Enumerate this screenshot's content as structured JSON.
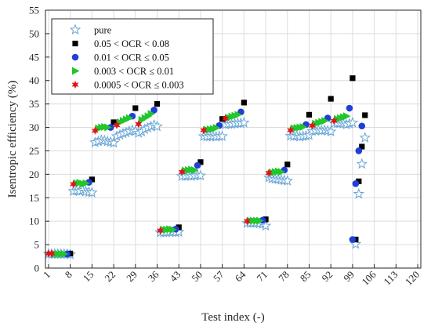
{
  "chart_data": {
    "type": "scatter",
    "title": "",
    "xlabel": "Test index (-)",
    "ylabel": "Isentropic efficiency (%)",
    "xlim": [
      0,
      121
    ],
    "ylim": [
      0,
      55
    ],
    "xticks": [
      1,
      8,
      15,
      22,
      29,
      36,
      43,
      50,
      57,
      64,
      71,
      78,
      85,
      92,
      99,
      106,
      113,
      120
    ],
    "yticks": [
      0,
      5,
      10,
      15,
      20,
      25,
      30,
      35,
      40,
      45,
      50,
      55
    ],
    "grid": true,
    "legend_position": "top-left",
    "series": [
      {
        "name": "pure",
        "marker": "star-outline",
        "color": "#6aa6d6",
        "points": [
          [
            1,
            3.0
          ],
          [
            2,
            3.0
          ],
          [
            3,
            3.0
          ],
          [
            4,
            3.0
          ],
          [
            5,
            3.0
          ],
          [
            6,
            3.0
          ],
          [
            7,
            3.0
          ],
          [
            8,
            2.9
          ],
          [
            9,
            16.4
          ],
          [
            10,
            16.5
          ],
          [
            11,
            16.4
          ],
          [
            12,
            16.6
          ],
          [
            13,
            16.3
          ],
          [
            14,
            16.2
          ],
          [
            15,
            16.1
          ],
          [
            16,
            26.8
          ],
          [
            17,
            27.0
          ],
          [
            18,
            27.3
          ],
          [
            19,
            27.2
          ],
          [
            20,
            27.0
          ],
          [
            21,
            26.9
          ],
          [
            22,
            26.7
          ],
          [
            23,
            28.1
          ],
          [
            24,
            28.4
          ],
          [
            25,
            28.7
          ],
          [
            26,
            28.9
          ],
          [
            27,
            29.2
          ],
          [
            28,
            29.4
          ],
          [
            29,
            29.2
          ],
          [
            30,
            28.8
          ],
          [
            31,
            29.1
          ],
          [
            32,
            29.6
          ],
          [
            33,
            29.9
          ],
          [
            34,
            30.2
          ],
          [
            35,
            30.5
          ],
          [
            36,
            30.2
          ],
          [
            37,
            7.6
          ],
          [
            38,
            7.6
          ],
          [
            39,
            7.6
          ],
          [
            40,
            7.7
          ],
          [
            41,
            7.7
          ],
          [
            42,
            7.6
          ],
          [
            43,
            7.7
          ],
          [
            44,
            19.6
          ],
          [
            45,
            19.6
          ],
          [
            46,
            19.7
          ],
          [
            47,
            19.6
          ],
          [
            48,
            19.7
          ],
          [
            49,
            19.8
          ],
          [
            50,
            19.7
          ],
          [
            51,
            28.1
          ],
          [
            52,
            28.0
          ],
          [
            53,
            28.1
          ],
          [
            54,
            28.1
          ],
          [
            55,
            28.0
          ],
          [
            56,
            28.1
          ],
          [
            57,
            28.1
          ],
          [
            58,
            30.6
          ],
          [
            59,
            30.7
          ],
          [
            60,
            30.7
          ],
          [
            61,
            30.8
          ],
          [
            62,
            30.9
          ],
          [
            63,
            30.9
          ],
          [
            64,
            31.0
          ],
          [
            65,
            9.6
          ],
          [
            66,
            9.6
          ],
          [
            67,
            9.6
          ],
          [
            68,
            9.6
          ],
          [
            69,
            9.5
          ],
          [
            70,
            9.4
          ],
          [
            71,
            9.0
          ],
          [
            72,
            19.3
          ],
          [
            73,
            19.1
          ],
          [
            74,
            19.0
          ],
          [
            75,
            18.9
          ],
          [
            76,
            18.8
          ],
          [
            77,
            18.7
          ],
          [
            78,
            18.6
          ],
          [
            79,
            28.2
          ],
          [
            80,
            28.1
          ],
          [
            81,
            28.2
          ],
          [
            82,
            28.0
          ],
          [
            83,
            28.1
          ],
          [
            84,
            28.2
          ],
          [
            85,
            28.3
          ],
          [
            86,
            29.2
          ],
          [
            87,
            29.3
          ],
          [
            88,
            29.4
          ],
          [
            89,
            29.3
          ],
          [
            90,
            29.4
          ],
          [
            91,
            29.3
          ],
          [
            92,
            29.1
          ],
          [
            93,
            30.9
          ],
          [
            94,
            30.9
          ],
          [
            95,
            30.9
          ],
          [
            96,
            30.8
          ],
          [
            97,
            30.6
          ],
          [
            98,
            30.8
          ],
          [
            99,
            31.0
          ],
          [
            100,
            5.1
          ],
          [
            101,
            15.8
          ],
          [
            102,
            22.2
          ],
          [
            103,
            27.8
          ]
        ]
      },
      {
        "name": "0.05 < OCR < 0.08",
        "marker": "square",
        "color": "#000000",
        "points": [
          [
            8,
            3.1
          ],
          [
            15,
            18.9
          ],
          [
            22,
            31.1
          ],
          [
            29,
            34.1
          ],
          [
            36,
            35.0
          ],
          [
            43,
            8.7
          ],
          [
            50,
            22.6
          ],
          [
            57,
            31.8
          ],
          [
            64,
            35.3
          ],
          [
            71,
            10.4
          ],
          [
            78,
            22.1
          ],
          [
            85,
            32.7
          ],
          [
            92,
            36.1
          ],
          [
            99,
            40.5
          ],
          [
            100,
            6.1
          ],
          [
            101,
            18.5
          ],
          [
            102,
            25.9
          ],
          [
            103,
            32.6
          ]
        ]
      },
      {
        "name": "0.01 < OCR ≤ 0.05",
        "marker": "circle",
        "color": "#1f3fd6",
        "points": [
          [
            7,
            3.0
          ],
          [
            14,
            18.3
          ],
          [
            21,
            30.0
          ],
          [
            28,
            32.4
          ],
          [
            35,
            33.7
          ],
          [
            42,
            8.3
          ],
          [
            49,
            21.9
          ],
          [
            56,
            30.4
          ],
          [
            63,
            33.3
          ],
          [
            70,
            10.2
          ],
          [
            77,
            20.9
          ],
          [
            84,
            30.6
          ],
          [
            91,
            32.0
          ],
          [
            98,
            34.1
          ],
          [
            99,
            6.1
          ],
          [
            100,
            18.0
          ],
          [
            101,
            25.0
          ],
          [
            102,
            30.3
          ]
        ]
      },
      {
        "name": "0.003 < OCR ≤ 0.01",
        "marker": "triangle-right",
        "color": "#22c52a",
        "points": [
          [
            3,
            3.0
          ],
          [
            4,
            3.0
          ],
          [
            5,
            3.0
          ],
          [
            6,
            3.0
          ],
          [
            10,
            18.1
          ],
          [
            11,
            18.2
          ],
          [
            12,
            18.0
          ],
          [
            13,
            18.1
          ],
          [
            17,
            29.8
          ],
          [
            18,
            30.0
          ],
          [
            19,
            30.1
          ],
          [
            20,
            30.0
          ],
          [
            24,
            31.1
          ],
          [
            25,
            31.4
          ],
          [
            26,
            31.7
          ],
          [
            27,
            32.0
          ],
          [
            31,
            31.6
          ],
          [
            32,
            32.0
          ],
          [
            33,
            32.4
          ],
          [
            34,
            32.9
          ],
          [
            38,
            8.2
          ],
          [
            39,
            8.2
          ],
          [
            40,
            8.3
          ],
          [
            41,
            8.2
          ],
          [
            45,
            20.8
          ],
          [
            46,
            20.9
          ],
          [
            47,
            21.0
          ],
          [
            48,
            20.9
          ],
          [
            52,
            29.5
          ],
          [
            53,
            29.6
          ],
          [
            54,
            29.7
          ],
          [
            55,
            29.9
          ],
          [
            59,
            32.1
          ],
          [
            60,
            32.3
          ],
          [
            61,
            32.5
          ],
          [
            62,
            32.7
          ],
          [
            66,
            10.1
          ],
          [
            67,
            10.1
          ],
          [
            68,
            10.1
          ],
          [
            69,
            10.1
          ],
          [
            73,
            20.4
          ],
          [
            74,
            20.5
          ],
          [
            75,
            20.6
          ],
          [
            76,
            20.5
          ],
          [
            80,
            29.8
          ],
          [
            81,
            29.9
          ],
          [
            82,
            30.0
          ],
          [
            83,
            30.1
          ],
          [
            87,
            30.8
          ],
          [
            88,
            31.0
          ],
          [
            89,
            31.2
          ],
          [
            90,
            31.4
          ],
          [
            94,
            31.8
          ],
          [
            95,
            32.0
          ],
          [
            96,
            32.2
          ],
          [
            97,
            32.4
          ]
        ]
      },
      {
        "name": "0.0005 < OCR ≤ 0.003",
        "marker": "star-filled",
        "color": "#e0141a",
        "points": [
          [
            1,
            3.1
          ],
          [
            2,
            3.1
          ],
          [
            9,
            17.9
          ],
          [
            16,
            29.3
          ],
          [
            23,
            30.5
          ],
          [
            30,
            30.7
          ],
          [
            37,
            8.0
          ],
          [
            44,
            20.5
          ],
          [
            51,
            29.4
          ],
          [
            58,
            31.9
          ],
          [
            65,
            10.0
          ],
          [
            72,
            20.3
          ],
          [
            79,
            29.4
          ],
          [
            86,
            30.4
          ],
          [
            93,
            31.4
          ]
        ]
      }
    ]
  }
}
